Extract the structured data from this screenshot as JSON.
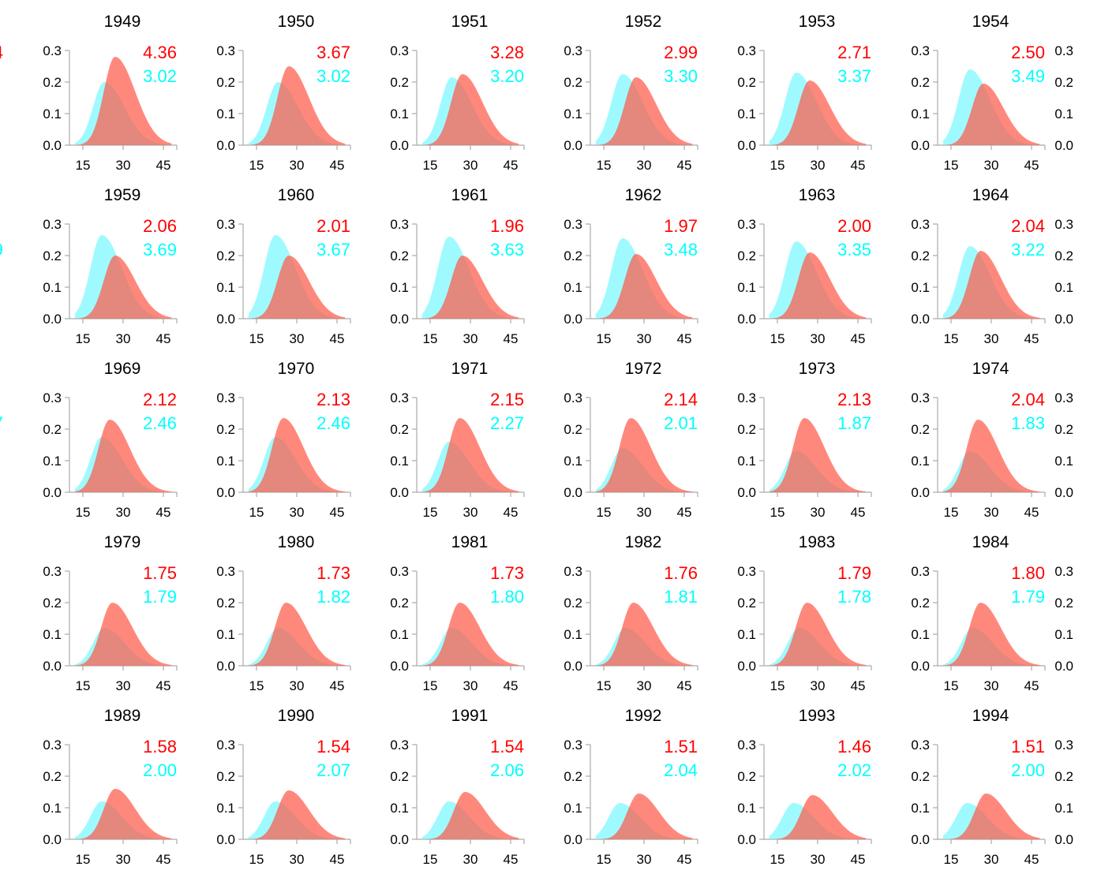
{
  "colors": {
    "red": "#ff0000",
    "cyan": "#00ffff",
    "red_fill": "#ff5a4a",
    "cyan_fill": "#7ff8ff",
    "axis": "#aaaaaa",
    "text": "#000000"
  },
  "axes": {
    "x_ticks": [
      "15",
      "30",
      "45"
    ],
    "y_ticks": [
      "0.0",
      "0.1",
      "0.2",
      "0.3"
    ],
    "xlim": [
      10,
      50
    ],
    "ylim": [
      0,
      0.3
    ]
  },
  "partial_left_values": [
    "4",
    "9",
    "7",
    "",
    ""
  ],
  "chart_data": [
    {
      "type": "area",
      "title": "1949",
      "red_value": "4.36",
      "cyan_value": "3.02",
      "red_peak": {
        "x": 27,
        "y": 0.28
      },
      "cyan_peak": {
        "x": 23,
        "y": 0.2
      }
    },
    {
      "type": "area",
      "title": "1950",
      "red_value": "3.67",
      "cyan_value": "3.02",
      "red_peak": {
        "x": 27,
        "y": 0.25
      },
      "cyan_peak": {
        "x": 23,
        "y": 0.2
      }
    },
    {
      "type": "area",
      "title": "1951",
      "red_value": "3.28",
      "cyan_value": "3.20",
      "red_peak": {
        "x": 27,
        "y": 0.225
      },
      "cyan_peak": {
        "x": 23,
        "y": 0.215
      }
    },
    {
      "type": "area",
      "title": "1952",
      "red_value": "2.99",
      "cyan_value": "3.30",
      "red_peak": {
        "x": 27,
        "y": 0.215
      },
      "cyan_peak": {
        "x": 22,
        "y": 0.225
      }
    },
    {
      "type": "area",
      "title": "1953",
      "red_value": "2.71",
      "cyan_value": "3.37",
      "red_peak": {
        "x": 27,
        "y": 0.205
      },
      "cyan_peak": {
        "x": 22,
        "y": 0.23
      }
    },
    {
      "type": "area",
      "title": "1954",
      "red_value": "2.50",
      "cyan_value": "3.49",
      "red_peak": {
        "x": 27,
        "y": 0.195
      },
      "cyan_peak": {
        "x": 22,
        "y": 0.24
      }
    },
    {
      "type": "area",
      "title": "1959",
      "red_value": "2.06",
      "cyan_value": "3.69",
      "red_peak": {
        "x": 27,
        "y": 0.2
      },
      "cyan_peak": {
        "x": 22,
        "y": 0.265
      }
    },
    {
      "type": "area",
      "title": "1960",
      "red_value": "2.01",
      "cyan_value": "3.67",
      "red_peak": {
        "x": 27,
        "y": 0.2
      },
      "cyan_peak": {
        "x": 22,
        "y": 0.265
      }
    },
    {
      "type": "area",
      "title": "1961",
      "red_value": "1.96",
      "cyan_value": "3.63",
      "red_peak": {
        "x": 27,
        "y": 0.2
      },
      "cyan_peak": {
        "x": 22,
        "y": 0.26
      }
    },
    {
      "type": "area",
      "title": "1962",
      "red_value": "1.97",
      "cyan_value": "3.48",
      "red_peak": {
        "x": 27,
        "y": 0.205
      },
      "cyan_peak": {
        "x": 22,
        "y": 0.255
      }
    },
    {
      "type": "area",
      "title": "1963",
      "red_value": "2.00",
      "cyan_value": "3.35",
      "red_peak": {
        "x": 27,
        "y": 0.21
      },
      "cyan_peak": {
        "x": 22,
        "y": 0.245
      }
    },
    {
      "type": "area",
      "title": "1964",
      "red_value": "2.04",
      "cyan_value": "3.22",
      "red_peak": {
        "x": 26,
        "y": 0.215
      },
      "cyan_peak": {
        "x": 22,
        "y": 0.23
      }
    },
    {
      "type": "area",
      "title": "1969",
      "red_value": "2.12",
      "cyan_value": "2.46",
      "red_peak": {
        "x": 25,
        "y": 0.23
      },
      "cyan_peak": {
        "x": 22,
        "y": 0.175
      }
    },
    {
      "type": "area",
      "title": "1970",
      "red_value": "2.13",
      "cyan_value": "2.46",
      "red_peak": {
        "x": 25,
        "y": 0.235
      },
      "cyan_peak": {
        "x": 22,
        "y": 0.175
      }
    },
    {
      "type": "area",
      "title": "1971",
      "red_value": "2.15",
      "cyan_value": "2.27",
      "red_peak": {
        "x": 26,
        "y": 0.235
      },
      "cyan_peak": {
        "x": 22,
        "y": 0.16
      }
    },
    {
      "type": "area",
      "title": "1972",
      "red_value": "2.14",
      "cyan_value": "2.01",
      "red_peak": {
        "x": 25,
        "y": 0.235
      },
      "cyan_peak": {
        "x": 22,
        "y": 0.14
      }
    },
    {
      "type": "area",
      "title": "1973",
      "red_value": "2.13",
      "cyan_value": "1.87",
      "red_peak": {
        "x": 25,
        "y": 0.235
      },
      "cyan_peak": {
        "x": 22,
        "y": 0.13
      }
    },
    {
      "type": "area",
      "title": "1974",
      "red_value": "2.04",
      "cyan_value": "1.83",
      "red_peak": {
        "x": 25,
        "y": 0.23
      },
      "cyan_peak": {
        "x": 22,
        "y": 0.13
      }
    },
    {
      "type": "area",
      "title": "1979",
      "red_value": "1.75",
      "cyan_value": "1.79",
      "red_peak": {
        "x": 26,
        "y": 0.2
      },
      "cyan_peak": {
        "x": 23,
        "y": 0.12
      }
    },
    {
      "type": "area",
      "title": "1980",
      "red_value": "1.73",
      "cyan_value": "1.82",
      "red_peak": {
        "x": 26,
        "y": 0.2
      },
      "cyan_peak": {
        "x": 23,
        "y": 0.12
      }
    },
    {
      "type": "area",
      "title": "1981",
      "red_value": "1.73",
      "cyan_value": "1.80",
      "red_peak": {
        "x": 26,
        "y": 0.2
      },
      "cyan_peak": {
        "x": 23,
        "y": 0.12
      }
    },
    {
      "type": "area",
      "title": "1982",
      "red_value": "1.76",
      "cyan_value": "1.81",
      "red_peak": {
        "x": 26,
        "y": 0.2
      },
      "cyan_peak": {
        "x": 23,
        "y": 0.12
      }
    },
    {
      "type": "area",
      "title": "1983",
      "red_value": "1.79",
      "cyan_value": "1.78",
      "red_peak": {
        "x": 26,
        "y": 0.2
      },
      "cyan_peak": {
        "x": 23,
        "y": 0.12
      }
    },
    {
      "type": "area",
      "title": "1984",
      "red_value": "1.80",
      "cyan_value": "1.79",
      "red_peak": {
        "x": 26,
        "y": 0.2
      },
      "cyan_peak": {
        "x": 23,
        "y": 0.12
      }
    },
    {
      "type": "area",
      "title": "1989",
      "red_value": "1.58",
      "cyan_value": "2.00",
      "red_peak": {
        "x": 27,
        "y": 0.16
      },
      "cyan_peak": {
        "x": 22,
        "y": 0.12
      }
    },
    {
      "type": "area",
      "title": "1990",
      "red_value": "1.54",
      "cyan_value": "2.07",
      "red_peak": {
        "x": 27,
        "y": 0.155
      },
      "cyan_peak": {
        "x": 22,
        "y": 0.12
      }
    },
    {
      "type": "area",
      "title": "1991",
      "red_value": "1.54",
      "cyan_value": "2.06",
      "red_peak": {
        "x": 28,
        "y": 0.15
      },
      "cyan_peak": {
        "x": 22,
        "y": 0.12
      }
    },
    {
      "type": "area",
      "title": "1992",
      "red_value": "1.51",
      "cyan_value": "2.04",
      "red_peak": {
        "x": 28,
        "y": 0.145
      },
      "cyan_peak": {
        "x": 21,
        "y": 0.115
      }
    },
    {
      "type": "area",
      "title": "1993",
      "red_value": "1.46",
      "cyan_value": "2.02",
      "red_peak": {
        "x": 28,
        "y": 0.14
      },
      "cyan_peak": {
        "x": 21,
        "y": 0.115
      }
    },
    {
      "type": "area",
      "title": "1994",
      "red_value": "1.51",
      "cyan_value": "2.00",
      "red_peak": {
        "x": 28,
        "y": 0.145
      },
      "cyan_peak": {
        "x": 21,
        "y": 0.115
      }
    }
  ]
}
